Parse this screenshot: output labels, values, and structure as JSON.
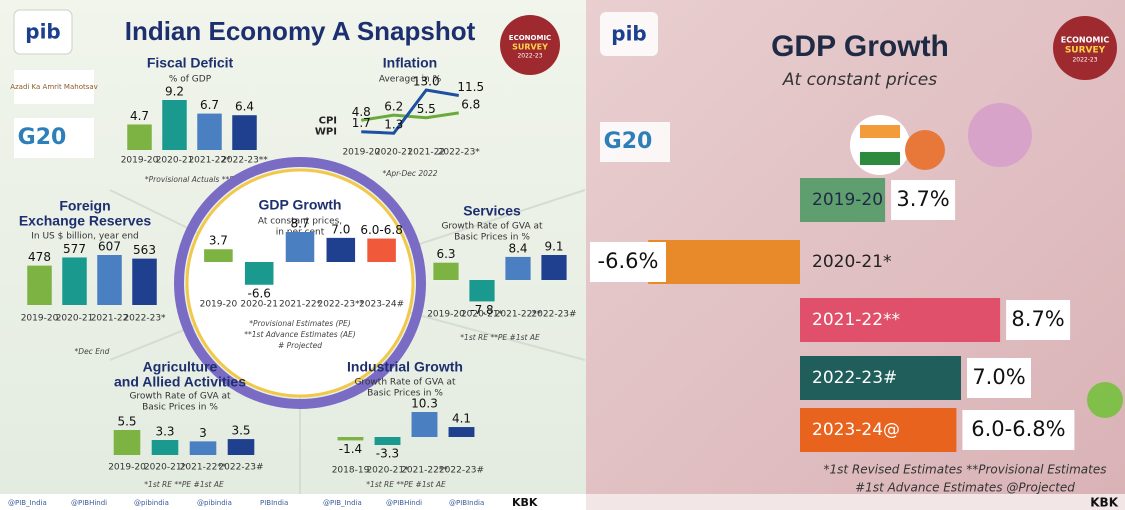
{
  "logos": {
    "pib": "pib",
    "azadi": "Azadi Ka Amrit Mahotsav",
    "g20": "G20",
    "badge": [
      "ECONOMIC",
      "SURVEY",
      "2022-23"
    ]
  },
  "left": {
    "title": "Indian Economy A Snapshot",
    "panels": [
      {
        "type": "bar",
        "title": [
          "Fiscal Deficit"
        ],
        "subtitle": [
          "% of GDP"
        ],
        "categories": [
          "2019-20",
          "2020-21",
          "2021-22*",
          "2022-23**"
        ],
        "values": [
          4.7,
          9.2,
          6.7,
          6.4
        ],
        "colors": [
          "#7cb342",
          "#1a9a8f",
          "#4a7fc1",
          "#1f3f8f"
        ],
        "notes": [
          "*Provisional Actuals **BE"
        ]
      },
      {
        "type": "line",
        "title": [
          "Inflation"
        ],
        "subtitle": [
          "Average, in %"
        ],
        "categories": [
          "2019-20",
          "2020-21",
          "2021-22",
          "2022-23*"
        ],
        "series": [
          {
            "name": "CPI",
            "color": "#6aaa3a",
            "values": [
              4.8,
              6.2,
              5.5,
              6.8
            ]
          },
          {
            "name": "WPI",
            "color": "#1f4fa0",
            "values": [
              1.7,
              1.3,
              13.0,
              11.5
            ],
            "value_labels": [
              "1.7",
              "1.3",
              "13.0",
              "11.5"
            ]
          }
        ],
        "notes": [
          "*Apr-Dec 2022"
        ]
      },
      {
        "type": "bar",
        "title": [
          "Foreign",
          "Exchange Reserves"
        ],
        "subtitle": [
          "In US $ billion, year end"
        ],
        "categories": [
          "2019-20",
          "2020-21",
          "2021-22",
          "2022-23*"
        ],
        "values": [
          478,
          577,
          607,
          563
        ],
        "colors": [
          "#7cb342",
          "#1a9a8f",
          "#4a7fc1",
          "#1f3f8f"
        ],
        "notes": [
          "*Dec End"
        ]
      },
      {
        "type": "bar",
        "title": [
          "GDP Growth"
        ],
        "subtitle": [
          "At constant prices,",
          "in per cent"
        ],
        "categories": [
          "2019-20",
          "2020-21",
          "2021-22*",
          "2022-23**",
          "2023-24#"
        ],
        "values": [
          3.7,
          -6.6,
          8.7,
          7.0,
          6.8
        ],
        "value_labels": [
          "3.7",
          "-6.6",
          "8.7",
          "7.0",
          "6.0-6.8"
        ],
        "colors": [
          "#7cb342",
          "#1a9a8f",
          "#4a7fc1",
          "#1f3f8f",
          "#f05a3a"
        ],
        "notes": [
          "*Provisional Estimates (PE)",
          "**1st Advance Estimates (AE)",
          "# Projected"
        ]
      },
      {
        "type": "bar",
        "title": [
          "Services"
        ],
        "subtitle": [
          "Growth Rate of GVA at",
          "Basic Prices in %"
        ],
        "categories": [
          "2019-20",
          "2020-21*",
          "2021-22**",
          "2022-23#"
        ],
        "values": [
          6.3,
          -7.8,
          8.4,
          9.1
        ],
        "colors": [
          "#7cb342",
          "#1a9a8f",
          "#4a7fc1",
          "#1f3f8f"
        ],
        "notes": [
          "*1st RE **PE #1st AE"
        ]
      },
      {
        "type": "bar",
        "title": [
          "Agriculture",
          "and Allied Activities"
        ],
        "subtitle": [
          "Growth Rate of GVA at",
          "Basic Prices in %"
        ],
        "categories": [
          "2019-20",
          "2020-21*",
          "2021-22**",
          "2022-23#"
        ],
        "values": [
          5.5,
          3.3,
          3.0,
          3.5
        ],
        "colors": [
          "#7cb342",
          "#1a9a8f",
          "#4a7fc1",
          "#1f3f8f"
        ],
        "notes": [
          "*1st RE **PE #1st AE"
        ]
      },
      {
        "type": "bar",
        "title": [
          "Industrial Growth"
        ],
        "subtitle": [
          "Growth Rate of GVA at",
          "Basic Prices in %"
        ],
        "categories": [
          "2018-19",
          "2020-21*",
          "2021-22**",
          "2022-23#"
        ],
        "values": [
          -1.4,
          -3.3,
          10.3,
          4.1
        ],
        "colors": [
          "#7cb342",
          "#1a9a8f",
          "#4a7fc1",
          "#1f3f8f"
        ],
        "notes": [
          "*1st RE **PE #1st AE"
        ]
      }
    ],
    "footer": [
      "@PIB_India",
      "@PIBHindi",
      "@pibindia",
      "@pibindia",
      "PIBIndia",
      "@PIB_India",
      "@PIBHindi",
      "@PIBIndia",
      "KBK"
    ]
  },
  "right": {
    "title": "GDP Growth",
    "subtitle": "At constant prices",
    "categories": [
      "2019-20",
      "2020-21*",
      "2021-22**",
      "2022-23#",
      "2023-24@"
    ],
    "values": [
      3.7,
      -6.6,
      8.7,
      7.0,
      6.8
    ],
    "value_labels": [
      "3.7%",
      "-6.6%",
      "8.7%",
      "7.0%",
      "6.0-6.8%"
    ],
    "colors": [
      "#5f9e6e",
      "#e8892a",
      "#e0506a",
      "#1f5e5a",
      "#e8641e"
    ],
    "notes": [
      "*1st Revised Estimates **Provisional Estimates",
      "#1st Advance Estimates @Projected"
    ],
    "footer": "KBK"
  }
}
